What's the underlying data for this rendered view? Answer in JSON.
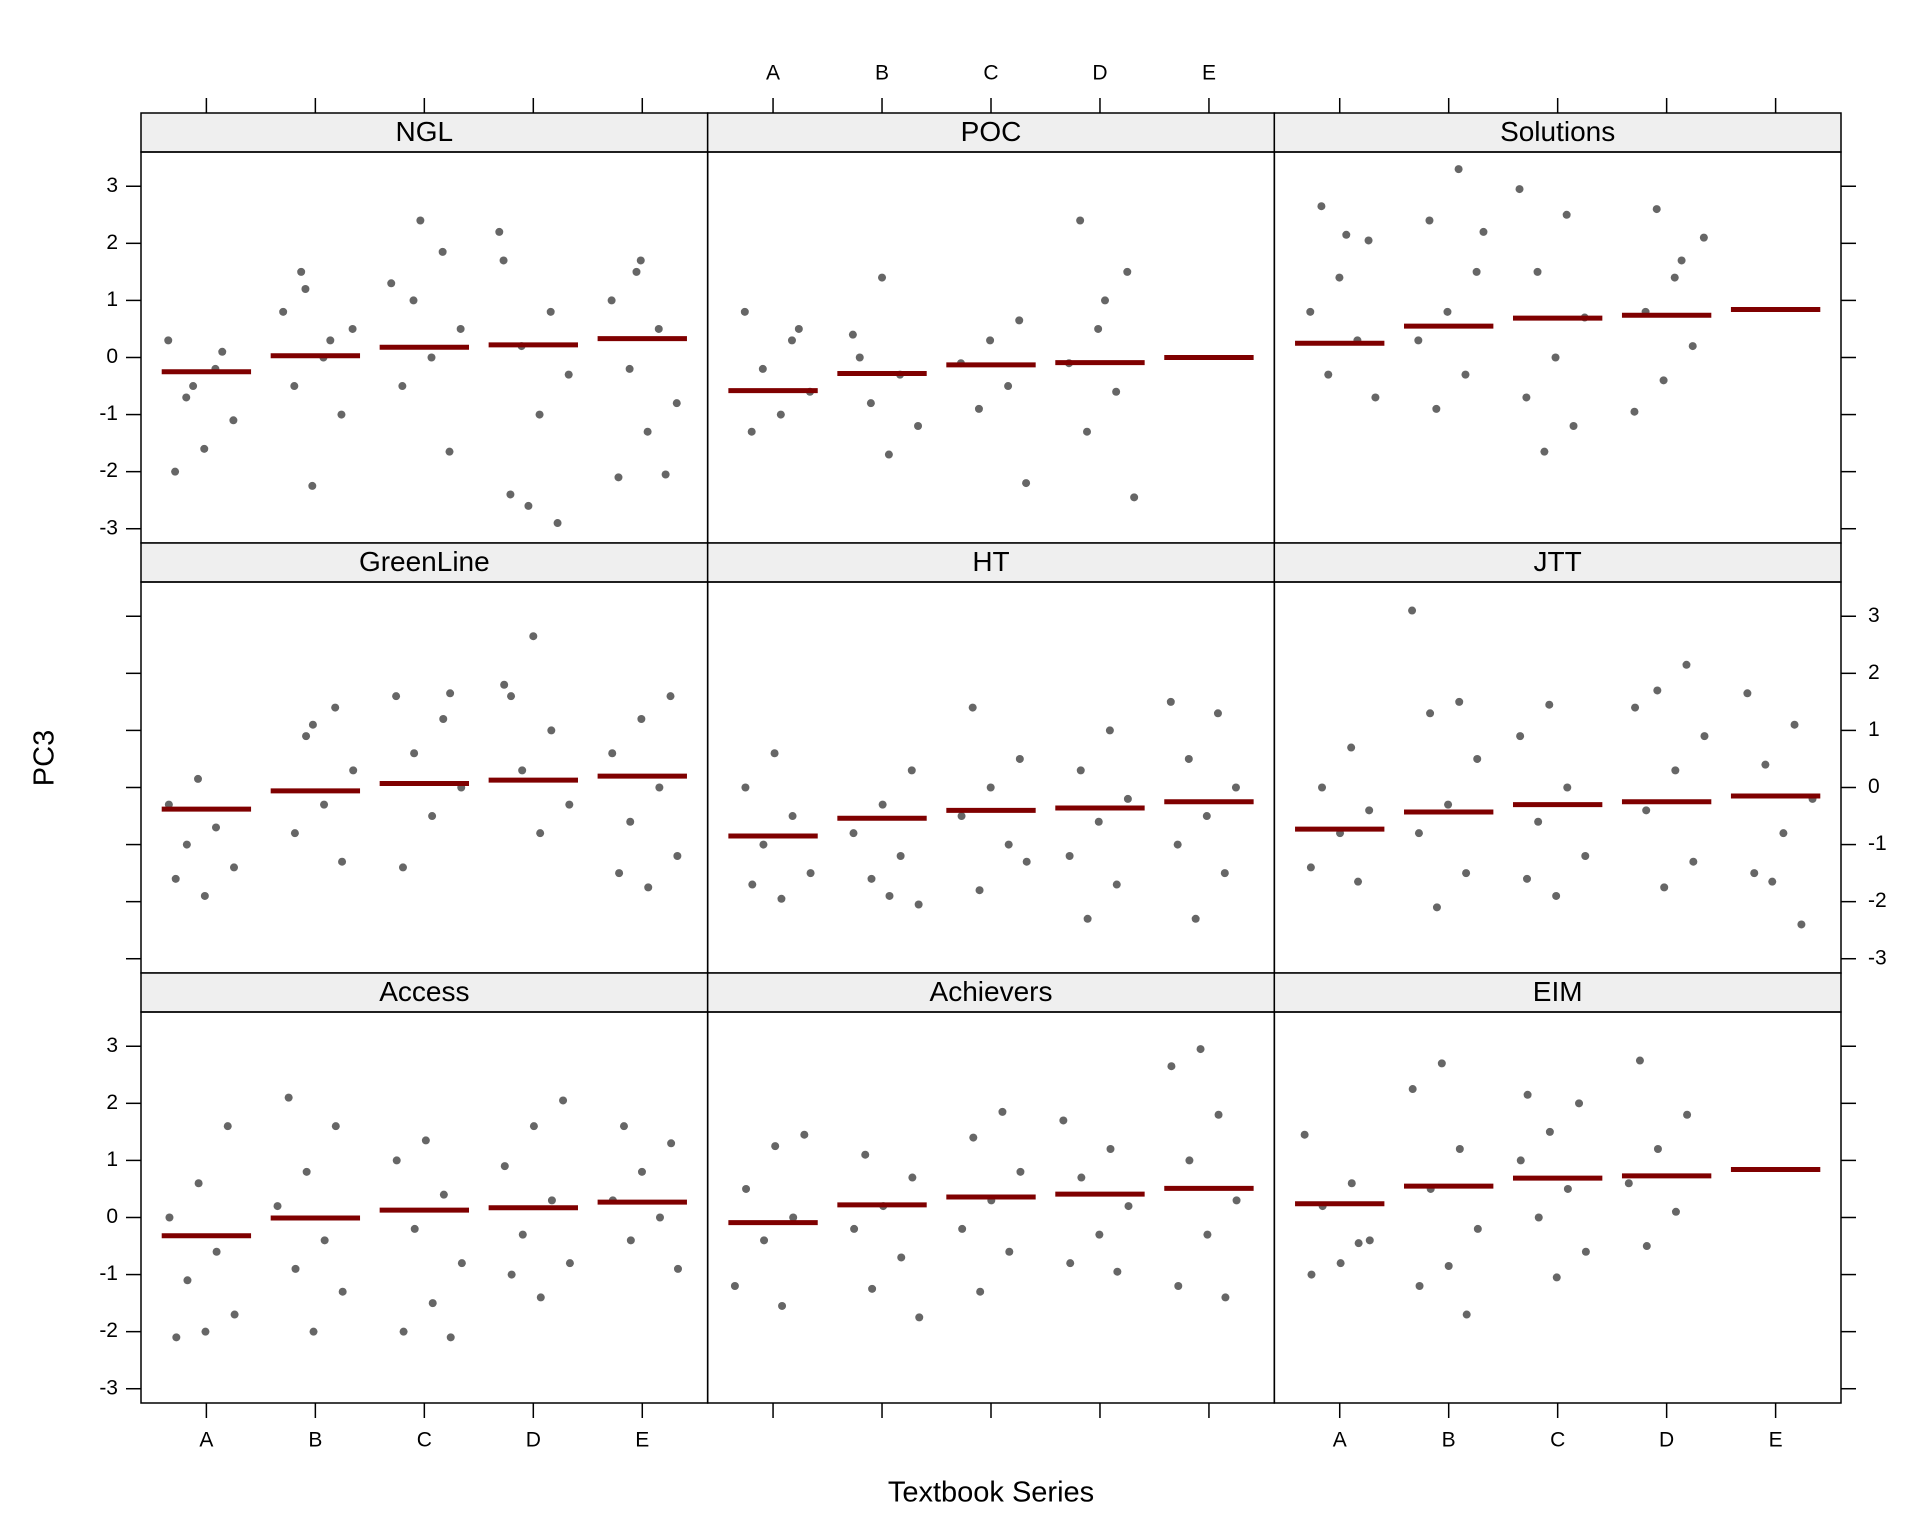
{
  "chart_data": {
    "type": "strip",
    "xlabel": "Textbook Series",
    "ylabel": "PC3",
    "categories": [
      "A",
      "B",
      "C",
      "D",
      "E"
    ],
    "ylim": [
      -3.25,
      3.6
    ],
    "yticks": [
      -3,
      -2,
      -1,
      0,
      1,
      2,
      3
    ],
    "point_color": "#666666",
    "mean_color": "#7f0000",
    "strip_color": "#efefef",
    "panels": [
      {
        "title": "NGL",
        "means": [
          -0.25,
          0.03,
          0.18,
          0.22,
          0.33
        ],
        "points": [
          [
            0.3,
            -0.2,
            -0.7,
            -1.1,
            -1.6,
            -2.0,
            0.1,
            -0.5
          ],
          [
            1.2,
            0.5,
            0.0,
            -0.5,
            -1.0,
            -2.25,
            0.8,
            0.3,
            1.5
          ],
          [
            1.85,
            1.0,
            0.5,
            0.0,
            -0.5,
            -1.65,
            2.4,
            1.3
          ],
          [
            1.7,
            0.8,
            0.2,
            -0.3,
            -1.0,
            -2.4,
            -2.9,
            -2.6,
            2.2
          ],
          [
            1.7,
            1.0,
            0.5,
            -0.2,
            -0.8,
            -1.3,
            -2.1,
            -2.05,
            1.5
          ]
        ]
      },
      {
        "title": "POC",
        "means": [
          -0.58,
          -0.28,
          -0.13,
          -0.09,
          0.0
        ],
        "points": [
          [
            0.8,
            0.3,
            -0.2,
            -0.6,
            -1.0,
            -1.3,
            0.5
          ],
          [
            1.4,
            0.4,
            -0.3,
            -0.8,
            -1.2,
            -1.7,
            0.0
          ],
          [
            0.65,
            0.3,
            -0.1,
            -0.5,
            -0.9,
            -2.2
          ],
          [
            2.4,
            1.5,
            0.5,
            -0.1,
            -0.6,
            -1.3,
            -2.45,
            1.0
          ],
          []
        ]
      },
      {
        "title": "Solutions",
        "means": [
          0.25,
          0.55,
          0.69,
          0.74,
          0.84
        ],
        "points": [
          [
            2.65,
            2.05,
            1.4,
            0.8,
            0.3,
            -0.3,
            -0.7,
            2.15
          ],
          [
            3.3,
            2.4,
            1.5,
            0.8,
            0.3,
            -0.3,
            -0.9,
            2.2
          ],
          [
            2.95,
            2.5,
            1.5,
            0.7,
            0.0,
            -0.7,
            -1.2,
            -1.65
          ],
          [
            2.6,
            2.1,
            1.4,
            0.8,
            0.2,
            -0.4,
            -0.95,
            1.7
          ],
          []
        ]
      },
      {
        "title": "GreenLine",
        "means": [
          -0.38,
          -0.06,
          0.07,
          0.13,
          0.2
        ],
        "points": [
          [
            0.15,
            -0.3,
            -0.7,
            -1.0,
            -1.4,
            -1.9,
            -1.6
          ],
          [
            1.4,
            0.9,
            0.3,
            -0.3,
            -0.8,
            -1.3,
            1.1
          ],
          [
            1.6,
            1.2,
            0.6,
            0.0,
            -0.5,
            -1.4,
            1.65
          ],
          [
            2.65,
            1.8,
            1.0,
            0.3,
            -0.3,
            -0.8,
            1.6
          ],
          [
            1.6,
            1.2,
            0.6,
            0.0,
            -0.6,
            -1.2,
            -1.75,
            -1.5
          ]
        ]
      },
      {
        "title": "HT",
        "means": [
          -0.85,
          -0.54,
          -0.4,
          -0.36,
          -0.25
        ],
        "points": [
          [
            0.6,
            0.0,
            -0.5,
            -1.0,
            -1.5,
            -1.95,
            -1.7
          ],
          [
            0.3,
            -0.3,
            -0.8,
            -1.2,
            -1.6,
            -2.05,
            -1.9
          ],
          [
            1.4,
            0.5,
            0.0,
            -0.5,
            -1.0,
            -1.8,
            -1.3
          ],
          [
            1.0,
            0.3,
            -0.2,
            -0.6,
            -1.2,
            -1.7,
            -2.3
          ],
          [
            1.5,
            1.3,
            0.5,
            0.0,
            -0.5,
            -1.0,
            -1.5,
            -2.3
          ]
        ]
      },
      {
        "title": "JTT",
        "means": [
          -0.73,
          -0.43,
          -0.3,
          -0.25,
          -0.15
        ],
        "points": [
          [
            0.7,
            0.0,
            -0.4,
            -0.8,
            -1.4,
            -1.65
          ],
          [
            3.1,
            1.5,
            1.3,
            0.5,
            -0.3,
            -0.8,
            -1.5,
            -2.1
          ],
          [
            1.45,
            0.9,
            0.0,
            -0.6,
            -1.2,
            -1.9,
            -1.6
          ],
          [
            2.15,
            1.7,
            0.9,
            0.3,
            -0.4,
            -1.3,
            -1.75,
            1.4
          ],
          [
            1.65,
            1.1,
            0.4,
            -0.2,
            -0.8,
            -1.5,
            -2.4,
            -1.65
          ]
        ]
      },
      {
        "title": "Access",
        "means": [
          -0.32,
          -0.01,
          0.13,
          0.17,
          0.27
        ],
        "points": [
          [
            1.6,
            0.6,
            0.0,
            -0.6,
            -1.1,
            -1.7,
            -2.0,
            -2.1
          ],
          [
            2.1,
            1.6,
            0.8,
            0.2,
            -0.4,
            -0.9,
            -1.3,
            -2.0
          ],
          [
            1.35,
            1.0,
            0.4,
            -0.2,
            -0.8,
            -1.5,
            -2.0,
            -2.1
          ],
          [
            2.05,
            1.6,
            0.9,
            0.3,
            -0.3,
            -0.8,
            -1.4,
            -1.0
          ],
          [
            1.6,
            1.3,
            0.8,
            0.3,
            0.0,
            -0.4,
            -0.9
          ]
        ]
      },
      {
        "title": "Achievers",
        "means": [
          -0.09,
          0.22,
          0.36,
          0.41,
          0.51
        ],
        "points": [
          [
            1.45,
            1.25,
            0.5,
            0.0,
            -0.4,
            -1.2,
            -1.55
          ],
          [
            1.1,
            0.7,
            0.2,
            -0.2,
            -0.7,
            -1.25,
            -1.75
          ],
          [
            1.85,
            1.4,
            0.8,
            0.3,
            -0.2,
            -0.6,
            -1.3
          ],
          [
            1.7,
            1.2,
            0.7,
            0.2,
            -0.3,
            -0.8,
            -0.95
          ],
          [
            2.95,
            2.65,
            1.8,
            1.0,
            0.3,
            -0.3,
            -1.2,
            -1.4
          ]
        ]
      },
      {
        "title": "EIM",
        "means": [
          0.24,
          0.55,
          0.69,
          0.73,
          0.84
        ],
        "points": [
          [
            1.45,
            0.6,
            0.2,
            -0.4,
            -0.8,
            -1.0,
            -0.45
          ],
          [
            2.7,
            2.25,
            1.2,
            0.5,
            -0.2,
            -0.85,
            -1.2,
            -1.7
          ],
          [
            2.0,
            1.5,
            1.0,
            0.5,
            0.0,
            -0.6,
            -1.05,
            2.15
          ],
          [
            2.75,
            1.8,
            1.2,
            0.6,
            0.1,
            -0.5
          ],
          []
        ]
      }
    ]
  }
}
